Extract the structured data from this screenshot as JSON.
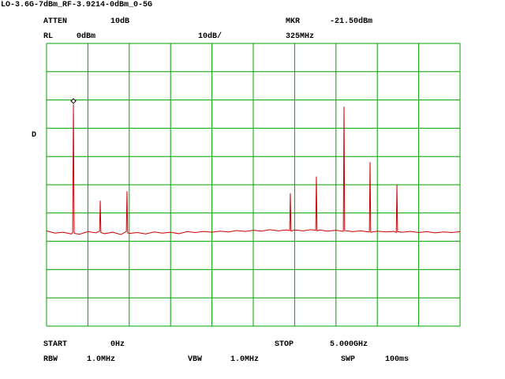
{
  "chart_data": {
    "type": "line",
    "title": "LO-3.6G-7dBm_RF-3.9214-0dBm_0-5G",
    "annotations": [
      "ATTEN",
      "10dB",
      "MKR",
      "-21.50dBm",
      "RL",
      "0dBm",
      "10dB/",
      "325MHz",
      "D",
      "START",
      "0Hz",
      "STOP",
      "5.000GHz",
      "RBW",
      "1.0MHz",
      "VBW",
      "1.0MHz",
      "SWP",
      "100ms"
    ],
    "x": [
      0,
      100,
      200,
      300,
      316,
      325,
      334,
      400,
      500,
      600,
      641,
      649,
      657,
      700,
      800,
      900,
      965,
      973,
      981,
      1000,
      1100,
      1200,
      1300,
      1400,
      1500,
      1600,
      1700,
      1800,
      1900,
      2000,
      2100,
      2200,
      2300,
      2400,
      2500,
      2600,
      2700,
      2800,
      2900,
      2940,
      2948,
      2956,
      3000,
      3100,
      3200,
      3255,
      3263,
      3271,
      3300,
      3400,
      3500,
      3589,
      3597,
      3605,
      3700,
      3800,
      3900,
      3904,
      3912,
      3920,
      4000,
      4100,
      4200,
      4229,
      4237,
      4245,
      4300,
      4400,
      4500,
      4600,
      4700,
      4800,
      4900,
      5000
    ],
    "series": [
      {
        "color": "#cc0000",
        "values": [
          -66.3,
          -67.1,
          -66.8,
          -67.4,
          -66.9,
          -21.5,
          -67.2,
          -67.5,
          -66.6,
          -67.0,
          -66.4,
          -55.6,
          -66.9,
          -67.3,
          -66.8,
          -67.6,
          -66.5,
          -52.3,
          -67.0,
          -67.2,
          -66.9,
          -67.4,
          -66.7,
          -67.1,
          -66.8,
          -67.3,
          -66.6,
          -66.9,
          -66.5,
          -66.8,
          -66.4,
          -66.7,
          -66.2,
          -66.5,
          -66.1,
          -66.4,
          -65.9,
          -66.3,
          -66.0,
          -66.2,
          -53.0,
          -66.4,
          -66.0,
          -66.3,
          -65.9,
          -66.1,
          -47.1,
          -66.3,
          -66.0,
          -66.4,
          -66.1,
          -66.5,
          -22.4,
          -66.2,
          -66.6,
          -66.3,
          -66.7,
          -66.5,
          -42.0,
          -66.8,
          -66.4,
          -66.7,
          -66.5,
          -66.9,
          -50.1,
          -66.6,
          -66.8,
          -66.5,
          -66.9,
          -66.6,
          -67.0,
          -66.7,
          -66.9,
          -66.6
        ]
      }
    ],
    "marker_index": 5,
    "xlim": [
      0,
      5000
    ],
    "xticks": [
      0,
      500,
      1000,
      1500,
      2000,
      2500,
      3000,
      3500,
      4000,
      4500,
      5000
    ],
    "ylim": [
      -100,
      0
    ],
    "yticks": [
      -100,
      -90,
      -80,
      -70,
      -60,
      -50,
      -40,
      -30,
      -20,
      -10,
      0
    ],
    "grid": true,
    "grid_color": "#00a000"
  }
}
